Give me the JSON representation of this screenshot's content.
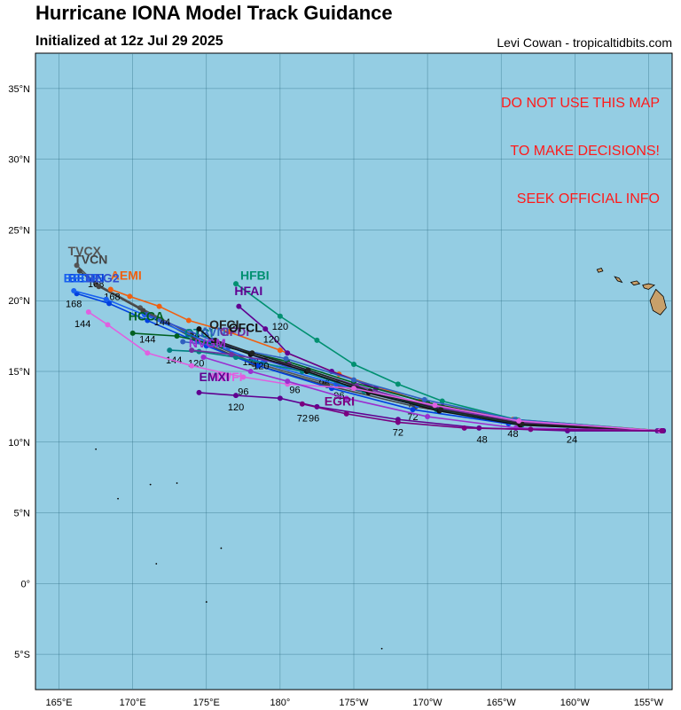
{
  "header": {
    "title": "Hurricane IONA Model Track Guidance",
    "subtitle": "Initialized at 12z Jul 29 2025",
    "credit": "Levi Cowan - tropicaltidbits.com"
  },
  "warning": {
    "lines": [
      "DO NOT USE THIS MAP",
      "TO MAKE DECISIONS!",
      "SEEK OFFICIAL INFO"
    ]
  },
  "colors": {
    "ocean": "#94cde3",
    "land": "#c8a06a",
    "grid": "#2a6a80",
    "warning": "#ff1a1a"
  },
  "map": {
    "lon_range": [
      163.4,
      206.6
    ],
    "lat_range": [
      -7.5,
      37.5
    ],
    "lon_ticks": [
      {
        "lon": 165,
        "label": "165°E"
      },
      {
        "lon": 170,
        "label": "170°E"
      },
      {
        "lon": 175,
        "label": "175°E"
      },
      {
        "lon": 180,
        "label": "180°"
      },
      {
        "lon": 185,
        "label": "175°W"
      },
      {
        "lon": 190,
        "label": "170°W"
      },
      {
        "lon": 195,
        "label": "165°W"
      },
      {
        "lon": 200,
        "label": "160°W"
      },
      {
        "lon": 205,
        "label": "155°W"
      }
    ],
    "lat_ticks": [
      {
        "lat": 35,
        "label": "35°N"
      },
      {
        "lat": 30,
        "label": "30°N"
      },
      {
        "lat": 25,
        "label": "25°N"
      },
      {
        "lat": 20,
        "label": "20°N"
      },
      {
        "lat": 15,
        "label": "15°N"
      },
      {
        "lat": 10,
        "label": "10°N"
      },
      {
        "lat": 5,
        "label": "5°N"
      },
      {
        "lat": 0,
        "label": "0°"
      },
      {
        "lat": -5,
        "label": "5°S"
      }
    ]
  },
  "chart_data": {
    "type": "line",
    "series": [
      {
        "name": "TVCX",
        "color": "#555555",
        "points": [
          [
            206.0,
            10.8
          ],
          [
            196.0,
            11.5
          ],
          [
            189.0,
            12.7
          ],
          [
            183.0,
            14.2
          ],
          [
            178.0,
            15.7
          ],
          [
            174.0,
            17.6
          ],
          [
            170.5,
            19.5
          ],
          [
            167.5,
            21.2
          ],
          [
            166.2,
            22.5
          ]
        ],
        "labels": [
          [
            196.0,
            11.5,
            "48"
          ],
          [
            189.0,
            12.7,
            "72"
          ],
          [
            183.0,
            14.2,
            "96"
          ],
          [
            178.0,
            15.7,
            "120"
          ],
          [
            174.0,
            17.6,
            "144"
          ],
          [
            167.5,
            21.2,
            "168"
          ]
        ],
        "name_at": [
          165.6,
          23.2
        ]
      },
      {
        "name": "TVCN",
        "color": "#444444",
        "points": [
          [
            206.0,
            10.8
          ],
          [
            196.2,
            11.3
          ],
          [
            189.2,
            12.5
          ],
          [
            183.2,
            14.0
          ],
          [
            178.2,
            15.5
          ],
          [
            174.2,
            17.3
          ],
          [
            170.7,
            19.3
          ],
          [
            167.7,
            21.0
          ],
          [
            166.4,
            22.1
          ]
        ],
        "labels": [],
        "name_at": [
          166.0,
          22.6
        ]
      },
      {
        "name": "AEMI",
        "color": "#f06010",
        "points": [
          [
            206.0,
            10.8
          ],
          [
            195.8,
            11.6
          ],
          [
            189.5,
            12.9
          ],
          [
            184.0,
            14.8
          ],
          [
            180.0,
            16.5
          ],
          [
            176.5,
            17.8
          ],
          [
            173.8,
            18.6
          ],
          [
            171.8,
            19.6
          ],
          [
            169.8,
            20.3
          ],
          [
            168.5,
            20.8
          ]
        ],
        "labels": [
          [
            168.6,
            20.3,
            "168"
          ]
        ],
        "name_at": [
          168.5,
          21.5
        ]
      },
      {
        "name": "BEMN",
        "color": "#0040e0",
        "points": [
          [
            206.0,
            10.8
          ],
          [
            195.5,
            11.3
          ],
          [
            189.0,
            12.3
          ],
          [
            183.5,
            13.8
          ],
          [
            178.5,
            15.4
          ],
          [
            175.0,
            16.8
          ],
          [
            171.0,
            18.6
          ],
          [
            168.4,
            19.8
          ],
          [
            166.2,
            20.5
          ]
        ],
        "labels": [
          [
            166.0,
            19.8,
            "168"
          ]
        ],
        "name_at": [
          165.6,
          21.3
        ]
      },
      {
        "name": "BEGF",
        "color": "#1860f0",
        "points": [
          [
            206.0,
            10.8
          ],
          [
            195.6,
            11.4
          ],
          [
            189.3,
            12.6
          ],
          [
            183.8,
            14.1
          ],
          [
            178.8,
            15.6
          ],
          [
            175.2,
            17.0
          ],
          [
            170.8,
            19.0
          ],
          [
            168.2,
            20.1
          ],
          [
            166.0,
            20.7
          ]
        ],
        "labels": [],
        "name_at": [
          165.3,
          21.3
        ]
      },
      {
        "name": "BEG2",
        "color": "#3050d0",
        "points": [
          [
            206.0,
            10.8
          ],
          [
            195.7,
            11.5
          ],
          [
            189.4,
            12.7
          ],
          [
            183.9,
            14.2
          ],
          [
            179.0,
            15.8
          ],
          [
            175.4,
            17.2
          ],
          [
            171.0,
            19.0
          ]
        ],
        "labels": [],
        "name_at": [
          166.8,
          21.3
        ]
      },
      {
        "name": "HFBI",
        "color": "#009070",
        "points": [
          [
            205.8,
            10.8
          ],
          [
            196.0,
            11.6
          ],
          [
            191.0,
            12.9
          ],
          [
            188.0,
            14.1
          ],
          [
            185.0,
            15.5
          ],
          [
            182.5,
            17.2
          ],
          [
            180.0,
            18.9
          ],
          [
            177.0,
            21.2
          ]
        ],
        "labels": [
          [
            180.0,
            18.2,
            "120"
          ]
        ],
        "name_at": [
          177.3,
          21.5
        ]
      },
      {
        "name": "HFAI",
        "color": "#600090",
        "points": [
          [
            205.6,
            10.8
          ],
          [
            196.2,
            11.4
          ],
          [
            191.0,
            12.5
          ],
          [
            186.5,
            13.8
          ],
          [
            183.5,
            15.0
          ],
          [
            180.5,
            16.3
          ],
          [
            179.0,
            18.0
          ],
          [
            177.2,
            19.6
          ]
        ],
        "labels": [
          [
            179.4,
            17.3,
            "120"
          ]
        ],
        "name_at": [
          176.9,
          20.4
        ]
      },
      {
        "name": "HCCA",
        "color": "#006020",
        "points": [
          [
            205.8,
            10.8
          ],
          [
            196.0,
            11.5
          ],
          [
            190.0,
            12.8
          ],
          [
            185.0,
            14.2
          ],
          [
            180.5,
            15.7
          ],
          [
            176.0,
            16.8
          ],
          [
            173.0,
            17.5
          ],
          [
            170.0,
            17.7
          ]
        ],
        "labels": [
          [
            171.0,
            17.3,
            "144"
          ],
          [
            172.0,
            18.5,
            "144"
          ]
        ],
        "name_at": [
          169.7,
          18.6
        ]
      },
      {
        "name": "CTCI",
        "color": "#008080",
        "points": [
          [
            205.8,
            10.8
          ],
          [
            196.4,
            11.2
          ],
          [
            190.6,
            12.3
          ],
          [
            185.7,
            13.6
          ],
          [
            181.5,
            15.0
          ],
          [
            177.0,
            16.0
          ],
          [
            174.5,
            16.4
          ],
          [
            172.5,
            16.5
          ]
        ],
        "labels": [
          [
            174.3,
            15.6,
            "120"
          ],
          [
            172.8,
            15.8,
            "144"
          ]
        ],
        "name_at": [
          173.5,
          17.4
        ]
      },
      {
        "name": "AVNI",
        "color": "#3060c0",
        "points": [
          [
            205.7,
            10.8
          ],
          [
            195.9,
            11.6
          ],
          [
            189.8,
            13.0
          ],
          [
            185.0,
            14.4
          ],
          [
            180.4,
            15.9
          ],
          [
            176.5,
            16.7
          ],
          [
            173.4,
            17.1
          ]
        ],
        "labels": [],
        "name_at": [
          174.6,
          17.5
        ]
      },
      {
        "name": "GFDI",
        "color": "#7030a0",
        "points": [
          [
            205.7,
            10.8
          ],
          [
            196.1,
            11.4
          ],
          [
            190.0,
            12.6
          ],
          [
            185.2,
            14.0
          ],
          [
            180.6,
            15.5
          ],
          [
            176.7,
            16.2
          ],
          [
            174.0,
            16.5
          ]
        ],
        "labels": [],
        "name_at": [
          175.9,
          17.5
        ]
      },
      {
        "name": "OFCL",
        "color": "#111111",
        "points": [
          [
            205.9,
            10.8
          ],
          [
            196.3,
            11.2
          ],
          [
            190.8,
            12.2
          ],
          [
            186.0,
            13.5
          ],
          [
            181.8,
            15.0
          ],
          [
            178.0,
            16.2
          ],
          [
            175.5,
            17.1
          ],
          [
            174.5,
            18.0
          ]
        ],
        "labels": [
          [
            195.8,
            10.6,
            "48"
          ],
          [
            189.0,
            11.8,
            "72"
          ],
          [
            184.0,
            13.3,
            "96"
          ],
          [
            178.7,
            15.4,
            "120"
          ]
        ],
        "name_at": [
          176.5,
          17.8
        ]
      },
      {
        "name": "OFCI",
        "color": "#222222",
        "points": [
          [
            205.9,
            10.8
          ],
          [
            196.4,
            11.3
          ],
          [
            190.9,
            12.3
          ],
          [
            186.1,
            13.6
          ],
          [
            181.9,
            15.1
          ],
          [
            178.1,
            16.3
          ],
          [
            175.6,
            17.2
          ]
        ],
        "labels": [],
        "name_at": [
          175.2,
          18.0
        ]
      },
      {
        "name": "HWFI",
        "color": "#e060e0",
        "points": [
          [
            205.8,
            10.8
          ],
          [
            196.2,
            11.5
          ],
          [
            190.5,
            12.6
          ],
          [
            185.0,
            13.8
          ],
          [
            180.5,
            14.1
          ],
          [
            177.5,
            14.6
          ],
          [
            174.0,
            15.4
          ],
          [
            171.0,
            16.3
          ],
          [
            168.3,
            18.3
          ],
          [
            167.0,
            19.2
          ]
        ],
        "labels": [
          [
            177.5,
            13.6,
            "96"
          ],
          [
            181.0,
            13.7,
            "96"
          ],
          [
            166.6,
            18.4,
            "144"
          ]
        ],
        "name_at": [
          175.3,
          14.3
        ]
      },
      {
        "name": "NVGM",
        "color": "#9a2fd0",
        "points": [
          [
            205.9,
            10.8
          ],
          [
            196.0,
            11.0
          ],
          [
            190.0,
            11.8
          ],
          [
            184.5,
            13.1
          ],
          [
            180.5,
            14.3
          ],
          [
            178.0,
            15.0
          ],
          [
            174.8,
            16.0
          ]
        ],
        "labels": [],
        "name_at": [
          173.8,
          16.7
        ]
      },
      {
        "name": "EMXI",
        "color": "#600090",
        "points": [
          [
            206.0,
            10.8
          ],
          [
            199.5,
            10.8
          ],
          [
            193.5,
            11.0
          ],
          [
            188.0,
            11.6
          ],
          [
            182.5,
            12.5
          ],
          [
            180.0,
            13.1
          ],
          [
            177.0,
            13.3
          ],
          [
            174.5,
            13.5
          ]
        ],
        "labels": [
          [
            199.8,
            10.2,
            "24"
          ],
          [
            193.7,
            10.2,
            "48"
          ],
          [
            188.0,
            10.7,
            "72"
          ],
          [
            182.3,
            11.7,
            "96"
          ],
          [
            177.0,
            12.5,
            "120"
          ]
        ],
        "name_at": [
          174.5,
          14.3
        ]
      },
      {
        "name": "EGRI",
        "color": "#7a0080",
        "points": [
          [
            205.9,
            10.8
          ],
          [
            197.0,
            10.9
          ],
          [
            192.5,
            11.0
          ],
          [
            188.0,
            11.4
          ],
          [
            184.5,
            12.0
          ],
          [
            181.5,
            12.7
          ]
        ],
        "labels": [
          [
            181.5,
            11.7,
            "72"
          ]
        ],
        "name_at": [
          183.0,
          12.6
        ]
      }
    ]
  }
}
